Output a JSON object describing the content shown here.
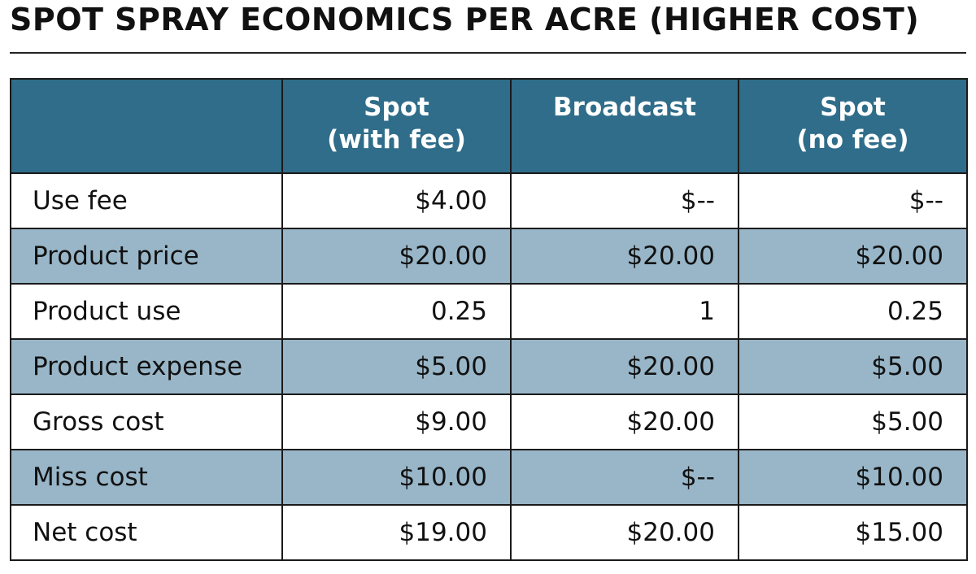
{
  "title": "SPOT SPRAY ECONOMICS PER ACRE (HIGHER COST)",
  "header_fill": "#2f6d8a",
  "stripe_fill": "#98b6c8",
  "chart_data": {
    "type": "table",
    "title": "SPOT SPRAY ECONOMICS PER ACRE (HIGHER COST)",
    "columns": [
      {
        "line1": "",
        "line2": ""
      },
      {
        "line1": "Spot",
        "line2": "(with fee)"
      },
      {
        "line1": "Broadcast",
        "line2": ""
      },
      {
        "line1": "Spot",
        "line2": "(no fee)"
      }
    ],
    "rows": [
      {
        "label": "Use fee",
        "cells": [
          "$4.00",
          "$--",
          "$--"
        ]
      },
      {
        "label": "Product price",
        "cells": [
          "$20.00",
          "$20.00",
          "$20.00"
        ]
      },
      {
        "label": "Product use",
        "cells": [
          "0.25",
          "1",
          "0.25"
        ]
      },
      {
        "label": "Product expense",
        "cells": [
          "$5.00",
          "$20.00",
          "$5.00"
        ]
      },
      {
        "label": "Gross cost",
        "cells": [
          "$9.00",
          "$20.00",
          "$5.00"
        ]
      },
      {
        "label": "Miss cost",
        "cells": [
          "$10.00",
          "$--",
          "$10.00"
        ]
      },
      {
        "label": "Net cost",
        "cells": [
          "$19.00",
          "$20.00",
          "$15.00"
        ]
      }
    ]
  }
}
